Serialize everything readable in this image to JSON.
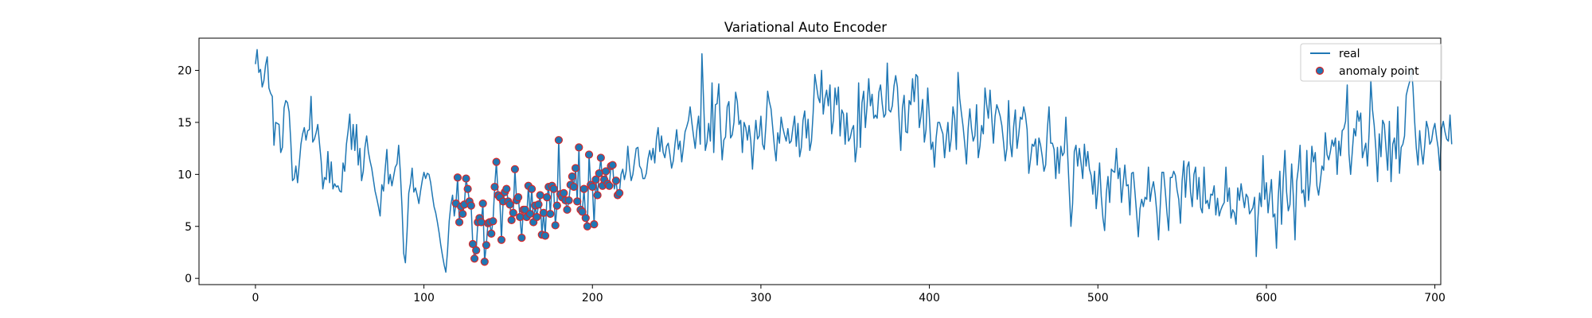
{
  "chart_data": {
    "type": "line",
    "title": "Variational Auto Encoder",
    "xlabel": "",
    "ylabel": "",
    "xlim": [
      -33.5,
      703.5
    ],
    "ylim": [
      -0.6,
      23.1
    ],
    "xticks": [
      0,
      100,
      200,
      300,
      400,
      500,
      600,
      700
    ],
    "yticks": [
      0,
      5,
      10,
      15,
      20
    ],
    "grid": false,
    "legend_position": "top-right",
    "colors": {
      "real": "#1f77b4",
      "anomaly_fill": "#1f77b4",
      "anomaly_edge": "#d62728",
      "axes": "#000000"
    },
    "series": [
      {
        "name": "real",
        "type": "line",
        "x_start": 0,
        "x_step": 1,
        "values": [
          20.6,
          22.0,
          19.8,
          20.1,
          18.4,
          19.0,
          20.5,
          21.3,
          18.3,
          17.8,
          17.5,
          12.8,
          15.0,
          14.9,
          14.8,
          12.1,
          12.6,
          16.4,
          17.1,
          16.9,
          16.0,
          13.1,
          9.4,
          9.6,
          10.8,
          9.2,
          11.0,
          12.9,
          13.9,
          14.5,
          13.3,
          14.2,
          14.3,
          17.5,
          13.1,
          13.4,
          14.0,
          14.8,
          13.0,
          11.3,
          8.6,
          9.7,
          9.5,
          12.2,
          9.2,
          11.2,
          8.6,
          9.1,
          8.8,
          8.9,
          8.4,
          8.3,
          11.1,
          10.3,
          12.9,
          14.2,
          15.8,
          12.4,
          14.8,
          12.3,
          14.8,
          10.9,
          12.5,
          9.4,
          10.3,
          12.6,
          13.7,
          12.2,
          11.3,
          10.6,
          9.5,
          8.4,
          7.7,
          6.9,
          6.0,
          9.0,
          8.4,
          10.5,
          12.4,
          9.1,
          10.0,
          8.9,
          9.8,
          10.7,
          11.0,
          12.8,
          10.2,
          6.8,
          2.4,
          1.5,
          4.5,
          8.2,
          9.1,
          10.6,
          8.3,
          8.7,
          8.0,
          7.2,
          8.4,
          9.4,
          10.2,
          9.6,
          10.1,
          10.0,
          9.2,
          8.0,
          6.9,
          6.3,
          5.4,
          4.4,
          3.2,
          2.2,
          1.3,
          0.6,
          2.6,
          5.5,
          7.1,
          8.0,
          6.0,
          7.2,
          9.7,
          5.4,
          6.9,
          6.2,
          7.1,
          9.6,
          8.6,
          7.4,
          7.0,
          3.3,
          1.9,
          2.7,
          5.4,
          5.8,
          5.4,
          7.2,
          1.6,
          3.2,
          5.3,
          5.4,
          4.3,
          5.5,
          8.8,
          11.2,
          8.0,
          7.8,
          3.7,
          7.4,
          8.3,
          8.6,
          7.4,
          7.1,
          5.6,
          6.3,
          10.5,
          7.5,
          7.8,
          5.9,
          3.9,
          6.6,
          6.6,
          5.9,
          8.9,
          6.2,
          8.6,
          5.4,
          7.0,
          5.9,
          7.1,
          8.0,
          4.2,
          6.3,
          4.1,
          7.8,
          8.8,
          6.2,
          8.9,
          8.6,
          5.1,
          7.0,
          13.3,
          8.1,
          7.8,
          8.2,
          7.5,
          6.6,
          7.5,
          9.0,
          9.8,
          8.8,
          10.6,
          7.4,
          12.6,
          6.6,
          6.4,
          8.6,
          5.8,
          5.0,
          11.9,
          9.0,
          8.8,
          5.2,
          9.5,
          8.0,
          10.1,
          11.6,
          8.9,
          9.5,
          10.3,
          9.1,
          8.9,
          10.8,
          10.9,
          8.6,
          9.4,
          8.0,
          8.2,
          10.0,
          10.5,
          9.5,
          10.3,
          12.7,
          10.7,
          9.4,
          10.0,
          11.3,
          12.5,
          12.6,
          10.8,
          10.5,
          9.6,
          9.6,
          10.1,
          11.5,
          12.3,
          11.4,
          12.5,
          11.1,
          13.4,
          14.5,
          12.2,
          13.7,
          12.1,
          11.6,
          12.7,
          13.0,
          11.9,
          10.6,
          11.3,
          12.9,
          14.3,
          12.4,
          13.2,
          11.2,
          12.6,
          14.1,
          14.6,
          15.2,
          16.5,
          15.0,
          13.7,
          12.5,
          14.3,
          15.6,
          12.9,
          21.6,
          17.0,
          12.3,
          13.1,
          14.9,
          13.2,
          18.8,
          12.1,
          16.7,
          16.8,
          18.7,
          14.5,
          11.4,
          13.3,
          13.6,
          16.5,
          17.0,
          13.5,
          13.8,
          15.0,
          17.9,
          17.0,
          14.8,
          15.2,
          12.1,
          15.0,
          14.5,
          13.3,
          14.7,
          13.2,
          10.5,
          13.2,
          15.2,
          13.4,
          13.7,
          15.6,
          12.9,
          12.4,
          14.8,
          18.0,
          17.0,
          16.3,
          14.5,
          12.7,
          11.3,
          14.0,
          13.0,
          15.5,
          14.5,
          13.8,
          13.2,
          14.4,
          13.0,
          13.2,
          14.5,
          15.6,
          12.7,
          14.9,
          11.7,
          12.6,
          15.2,
          16.1,
          13.5,
          15.3,
          12.3,
          13.2,
          15.9,
          19.6,
          18.5,
          17.4,
          16.9,
          20.0,
          15.8,
          17.3,
          18.1,
          16.6,
          18.6,
          13.9,
          15.2,
          18.3,
          16.7,
          18.4,
          13.7,
          16.2,
          15.8,
          12.9,
          15.9,
          13.2,
          13.5,
          14.3,
          14.7,
          11.2,
          12.7,
          18.8,
          12.6,
          16.9,
          18.0,
          14.5,
          16.6,
          19.2,
          16.6,
          17.7,
          15.4,
          15.7,
          15.4,
          17.9,
          18.6,
          16.8,
          15.5,
          15.8,
          20.7,
          16.2,
          16.0,
          16.6,
          18.5,
          19.5,
          18.4,
          15.3,
          12.3,
          16.4,
          17.6,
          14.1,
          14.0,
          17.1,
          16.7,
          19.2,
          17.0,
          19.6,
          19.4,
          14.5,
          15.6,
          17.2,
          13.1,
          14.3,
          18.3,
          15.5,
          12.4,
          13.1,
          10.7,
          13.5,
          15.0,
          15.0,
          14.4,
          13.9,
          11.6,
          13.4,
          15.0,
          12.2,
          13.5,
          16.5,
          15.4,
          12.4,
          19.8,
          17.3,
          15.9,
          14.6,
          12.9,
          11.0,
          14.4,
          16.3,
          14.4,
          13.2,
          13.7,
          16.7,
          11.6,
          12.7,
          14.7,
          13.9,
          18.3,
          16.7,
          15.4,
          18.1,
          15.5,
          13.0,
          15.6,
          16.7,
          16.2,
          15.6,
          14.7,
          13.1,
          11.3,
          12.5,
          17.1,
          13.0,
          11.7,
          14.6,
          16.2,
          12.5,
          13.8,
          15.5,
          15.3,
          16.5,
          15.7,
          14.3,
          10.1,
          11.4,
          12.9,
          12.7,
          13.4,
          10.9,
          13.5,
          12.8,
          11.7,
          10.3,
          10.9,
          14.3,
          16.5,
          13.0,
          13.0,
          12.4,
          9.6,
          12.6,
          10.1,
          12.7,
          11.8,
          12.1,
          15.5,
          12.1,
          8.5,
          5.0,
          7.2,
          12.2,
          12.8,
          10.8,
          12.5,
          11.1,
          9.6,
          12.9,
          10.8,
          12.2,
          10.5,
          9.9,
          8.1,
          10.3,
          6.7,
          8.6,
          11.1,
          7.9,
          5.8,
          4.6,
          8.2,
          9.8,
          7.3,
          10.5,
          10.3,
          10.2,
          12.5,
          9.6,
          10.6,
          7.3,
          9.1,
          10.9,
          8.9,
          9.0,
          6.1,
          10.1,
          10.2,
          8.3,
          6.2,
          4.0,
          6.7,
          7.6,
          6.9,
          7.8,
          7.6,
          10.7,
          7.4,
          8.6,
          9.3,
          8.1,
          6.3,
          3.7,
          6.9,
          10.2,
          10.2,
          8.4,
          6.3,
          4.6,
          9.7,
          9.7,
          10.3,
          9.9,
          8.5,
          7.6,
          5.3,
          9.4,
          11.3,
          7.8,
          10.7,
          11.2,
          8.3,
          6.9,
          10.0,
          10.7,
          7.6,
          9.7,
          6.8,
          6.3,
          10.7,
          7.2,
          7.5,
          6.7,
          8.1,
          8.0,
          8.9,
          6.1,
          7.7,
          6.0,
          6.6,
          7.0,
          7.3,
          10.7,
          7.4,
          8.7,
          5.8,
          6.6,
          6.3,
          5.2,
          8.7,
          7.5,
          9.1,
          7.9,
          6.8,
          8.1,
          7.8,
          6.2,
          6.5,
          6.8,
          7.8,
          2.1,
          5.8,
          8.2,
          6.9,
          11.8,
          7.6,
          9.2,
          6.3,
          8.0,
          9.5,
          5.9,
          6.2,
          2.9,
          7.7,
          10.3,
          5.2,
          9.4,
          12.3,
          8.3,
          6.5,
          7.1,
          11.0,
          7.9,
          3.7,
          9.3,
          10.6,
          12.8,
          8.2,
          8.5,
          6.9,
          12.3,
          7.5,
          9.3,
          12.7,
          11.2,
          12.1,
          8.9,
          8.0,
          9.3,
          10.8,
          10.4,
          14.0,
          11.9,
          11.4,
          12.2,
          13.3,
          12.7,
          13.5,
          10.0,
          13.2,
          11.8,
          14.2,
          14.4,
          15.1,
          18.6,
          12.0,
          10.0,
          12.2,
          14.4,
          13.7,
          16.1,
          15.1,
          15.9,
          11.6,
          12.3,
          13.0,
          10.8,
          14.1,
          19.0,
          16.2,
          14.7,
          12.4,
          9.3,
          13.9,
          11.7,
          15.2,
          14.8,
          12.5,
          10.4,
          15.1,
          9.3,
          12.9,
          13.5,
          11.5,
          16.5,
          10.1,
          12.6,
          12.9,
          13.7,
          17.6,
          18.3,
          18.9,
          20.3,
          18.4,
          15.1,
          12.5,
          10.9,
          14.2,
          12.3,
          11.0,
          12.8,
          15.1,
          14.4,
          12.9,
          13.2,
          14.3,
          14.9,
          13.6,
          12.5,
          10.4,
          14.4,
          15.1,
          14.1,
          13.4,
          13.2,
          15.7,
          12.9
        ]
      },
      {
        "name": "anomaly point",
        "type": "scatter",
        "indices": [
          119,
          120,
          121,
          122,
          123,
          124,
          125,
          126,
          127,
          128,
          129,
          130,
          131,
          132,
          133,
          134,
          135,
          136,
          137,
          138,
          139,
          140,
          141,
          142,
          143,
          144,
          145,
          146,
          147,
          148,
          149,
          150,
          151,
          152,
          153,
          154,
          155,
          156,
          157,
          158,
          159,
          160,
          161,
          162,
          163,
          164,
          165,
          166,
          167,
          168,
          169,
          170,
          171,
          172,
          173,
          174,
          175,
          176,
          177,
          178,
          179,
          180,
          181,
          182,
          183,
          184,
          185,
          186,
          187,
          188,
          189,
          190,
          191,
          192,
          193,
          194,
          195,
          196,
          197,
          198,
          199,
          200,
          201,
          202,
          203,
          204,
          205,
          206,
          207,
          208,
          209,
          210,
          211,
          212,
          214,
          215,
          216
        ]
      }
    ]
  }
}
